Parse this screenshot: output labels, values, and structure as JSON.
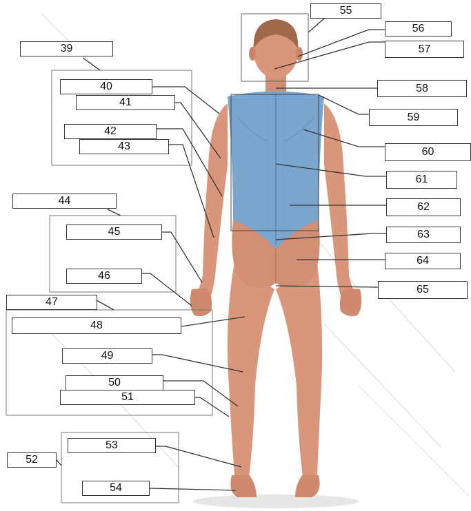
{
  "labels": {
    "l39": "39",
    "l40": "40",
    "l41": "41",
    "l42": "42",
    "l43": "43",
    "l44": "44",
    "l45": "45",
    "l46": "46",
    "l47": "47",
    "l48": "48",
    "l49": "49",
    "l50": "50",
    "l51": "51",
    "l52": "52",
    "l53": "53",
    "l54": "54",
    "l55": "55",
    "l56": "56",
    "l57": "57",
    "l58": "58",
    "l59": "59",
    "l60": "60",
    "l61": "61",
    "l62": "62",
    "l63": "63",
    "l64": "64",
    "l65": "65"
  },
  "colors": {
    "skin": "#d9967a",
    "skin_shadow": "#c27c62",
    "hair": "#a0694a",
    "back_highlight": "#7aa5cc"
  }
}
